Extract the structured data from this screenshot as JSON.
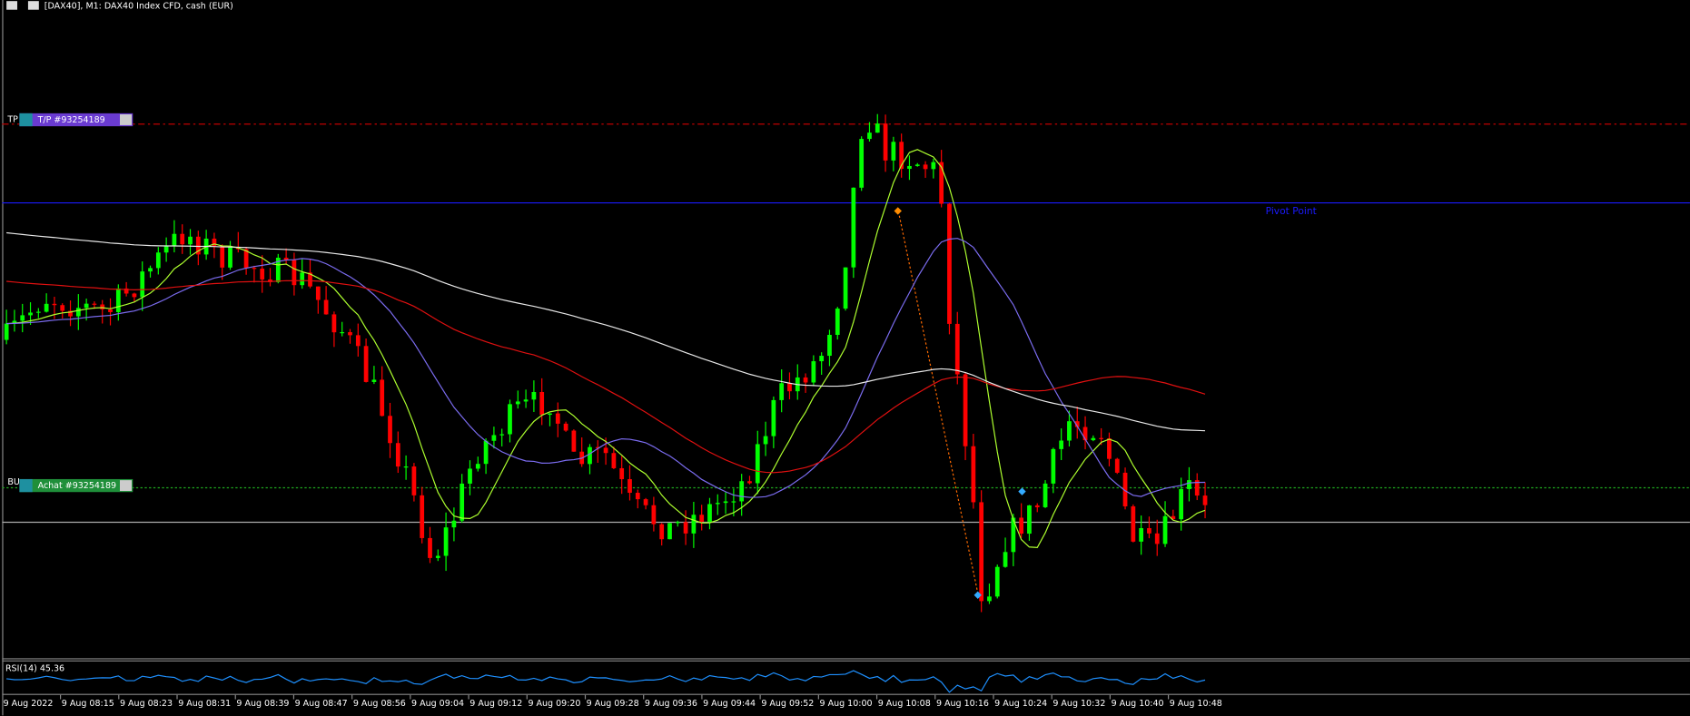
{
  "header": {
    "title": "[DAX40], M1:  DAX40 Index CFD, cash (EUR)"
  },
  "levels": {
    "tp_tag": "TP",
    "tp_button": "T/P #93254189",
    "buy_tag": "BU",
    "buy_button": "Achat #93254189",
    "pivot": "Pivot Point"
  },
  "indicator": {
    "label": "RSI(14) 45.36"
  },
  "time_axis": [
    "9 Aug 2022",
    "9 Aug 08:15",
    "9 Aug 08:23",
    "9 Aug 08:31",
    "9 Aug 08:39",
    "9 Aug 08:47",
    "9 Aug 08:56",
    "9 Aug 09:04",
    "9 Aug 09:12",
    "9 Aug 09:20",
    "9 Aug 09:28",
    "9 Aug 09:36",
    "9 Aug 09:44",
    "9 Aug 09:52",
    "9 Aug 10:00",
    "9 Aug 10:08",
    "9 Aug 10:16",
    "9 Aug 10:24",
    "9 Aug 10:32",
    "9 Aug 10:40",
    "9 Aug 10:48"
  ]
}
